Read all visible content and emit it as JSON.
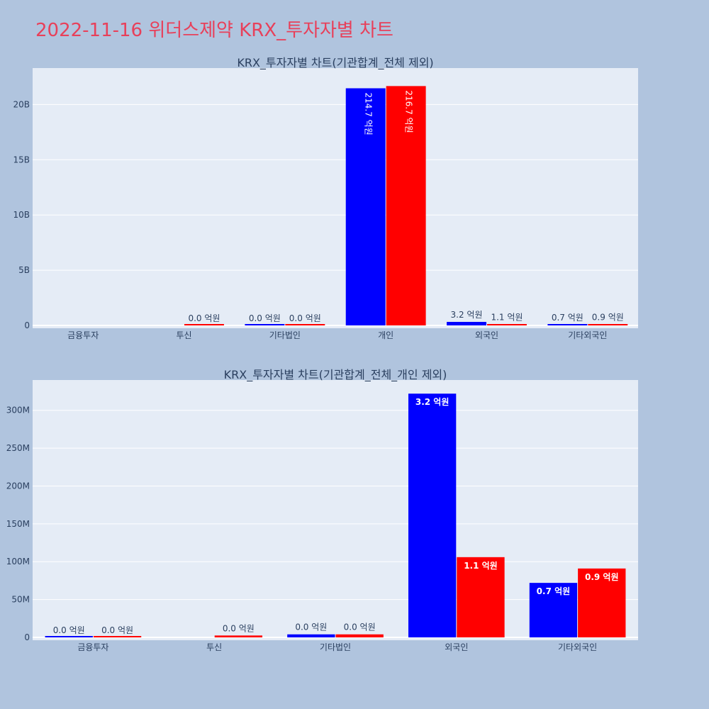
{
  "page": {
    "title": "2022-11-16 위더스제약 KRX_투자자별 차트"
  },
  "colors": {
    "page_bg": "#b0c4de",
    "plot_bg": "#e5ecf6",
    "grid": "#ffffff",
    "text": "#2a3f5f",
    "title": "#e8405a",
    "series_blue": "#0000ff",
    "series_red": "#ff0000"
  },
  "chart_data": [
    {
      "type": "bar",
      "title": "KRX_투자자별 차트(기관합계_전체 제외)",
      "categories": [
        "금융투자",
        "투신",
        "기타법인",
        "개인",
        "외국인",
        "기타외국인"
      ],
      "y_ticks": [
        {
          "value": 0,
          "label": "0"
        },
        {
          "value": 5000000000,
          "label": "5B"
        },
        {
          "value": 10000000000,
          "label": "10B"
        },
        {
          "value": 15000000000,
          "label": "15B"
        },
        {
          "value": 20000000000,
          "label": "20B"
        }
      ],
      "ylim": [
        0,
        23300000000
      ],
      "grid": true,
      "series": [
        {
          "color": "#0000ff",
          "values": [
            null,
            null,
            0,
            21470000000,
            320000000,
            70000000
          ],
          "labels": [
            "",
            "",
            "0.0 억원",
            "214.7 억원",
            "3.2 억원",
            "0.7 억원"
          ]
        },
        {
          "color": "#ff0000",
          "values": [
            null,
            0,
            0,
            21670000000,
            110000000,
            90000000
          ],
          "labels": [
            "",
            "0.0 억원",
            "0.0 억원",
            "216.7 억원",
            "1.1 억원",
            "0.9 억원"
          ]
        }
      ]
    },
    {
      "type": "bar",
      "title": "KRX_투자자별 차트(기관합계_전체_개인 제외)",
      "categories": [
        "금융투자",
        "투신",
        "기타법인",
        "외국인",
        "기타외국인"
      ],
      "y_ticks": [
        {
          "value": 0,
          "label": "0"
        },
        {
          "value": 50000000,
          "label": "50M"
        },
        {
          "value": 100000000,
          "label": "100M"
        },
        {
          "value": 150000000,
          "label": "150M"
        },
        {
          "value": 200000000,
          "label": "200M"
        },
        {
          "value": 250000000,
          "label": "250M"
        },
        {
          "value": 300000000,
          "label": "300M"
        }
      ],
      "ylim": [
        0,
        340000000
      ],
      "grid": true,
      "series": [
        {
          "color": "#0000ff",
          "values": [
            0,
            null,
            4000000,
            322000000,
            72000000
          ],
          "labels": [
            "0.0 억원",
            "",
            "0.0 억원",
            "3.2 억원",
            "0.7 억원"
          ]
        },
        {
          "color": "#ff0000",
          "values": [
            0,
            2500000,
            4000000,
            106000000,
            91000000
          ],
          "labels": [
            "0.0 억원",
            "0.0 억원",
            "0.0 억원",
            "1.1 억원",
            "0.9 억원"
          ]
        }
      ]
    }
  ]
}
